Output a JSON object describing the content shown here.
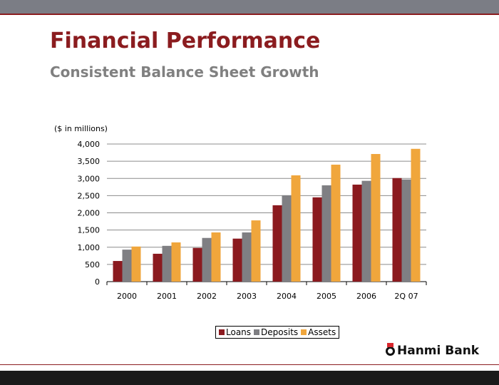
{
  "slide": {
    "title": "Financial Performance",
    "subtitle": "Consistent Balance Sheet Growth",
    "logo_text": "Hanmi Bank"
  },
  "chart_data": {
    "type": "bar",
    "ylabel": "($ in millions)",
    "categories": [
      "2000",
      "2001",
      "2002",
      "2003",
      "2004",
      "2005",
      "2006",
      "2Q 07"
    ],
    "ylim": [
      0,
      4000
    ],
    "yticks": [
      0,
      500,
      1000,
      1500,
      2000,
      2500,
      3000,
      3500,
      4000
    ],
    "ytick_labels": [
      "0",
      "500",
      "1,000",
      "1,500",
      "2,000",
      "2,500",
      "3,000",
      "3,500",
      "4,000"
    ],
    "grid": true,
    "legend_position": "bottom",
    "series": [
      {
        "name": "Loans",
        "color": "#8b1a1f",
        "values": [
          600,
          810,
          980,
          1250,
          2220,
          2450,
          2820,
          3010
        ]
      },
      {
        "name": "Deposits",
        "color": "#7f7f83",
        "values": [
          930,
          1040,
          1270,
          1430,
          2510,
          2800,
          2930,
          2970
        ]
      },
      {
        "name": "Assets",
        "color": "#f0a63c",
        "values": [
          1020,
          1140,
          1430,
          1780,
          3090,
          3400,
          3710,
          3860
        ]
      }
    ]
  }
}
